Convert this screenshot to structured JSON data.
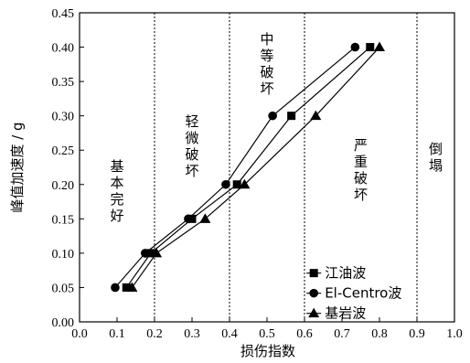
{
  "chart_data": {
    "type": "line",
    "xlabel": "损伤指数",
    "ylabel": "峰值加速度 / g",
    "xlim": [
      0.0,
      1.0
    ],
    "ylim": [
      0.0,
      0.45
    ],
    "xticks": [
      "0.0",
      "0.1",
      "0.2",
      "0.3",
      "0.4",
      "0.5",
      "0.6",
      "0.7",
      "0.8",
      "0.9",
      "1.0"
    ],
    "yticks": [
      "0.00",
      "0.05",
      "0.10",
      "0.15",
      "0.20",
      "0.25",
      "0.30",
      "0.35",
      "0.40",
      "0.45"
    ],
    "x_ticks_values": [
      0.0,
      0.1,
      0.2,
      0.3,
      0.4,
      0.5,
      0.6,
      0.7,
      0.8,
      0.9,
      1.0
    ],
    "y_ticks_values": [
      0.0,
      0.05,
      0.1,
      0.15,
      0.2,
      0.25,
      0.3,
      0.35,
      0.4,
      0.45
    ],
    "region_boundaries": [
      0.2,
      0.4,
      0.6,
      0.9
    ],
    "regions": [
      {
        "label": "基本完好",
        "x": 0.1,
        "y": 0.22
      },
      {
        "label": "轻微破坏",
        "x": 0.3,
        "y": 0.285
      },
      {
        "label": "中等破坏",
        "x": 0.5,
        "y": 0.405
      },
      {
        "label": "严重破坏",
        "x": 0.75,
        "y": 0.25
      },
      {
        "label": "倒塌",
        "x": 0.95,
        "y": 0.245
      }
    ],
    "series": [
      {
        "name": "江油波",
        "marker": "square",
        "x": [
          0.125,
          0.19,
          0.3,
          0.42,
          0.565,
          0.775
        ],
        "y": [
          0.05,
          0.1,
          0.15,
          0.2,
          0.3,
          0.4
        ]
      },
      {
        "name": "El-Centro波",
        "marker": "circle",
        "x": [
          0.095,
          0.175,
          0.29,
          0.39,
          0.515,
          0.735
        ],
        "y": [
          0.05,
          0.1,
          0.15,
          0.2,
          0.3,
          0.4
        ]
      },
      {
        "name": "基岩波",
        "marker": "triangle",
        "x": [
          0.14,
          0.205,
          0.335,
          0.44,
          0.63,
          0.8
        ],
        "y": [
          0.05,
          0.1,
          0.15,
          0.2,
          0.3,
          0.4
        ]
      }
    ],
    "legend_position": "lower-right",
    "grid": false
  }
}
